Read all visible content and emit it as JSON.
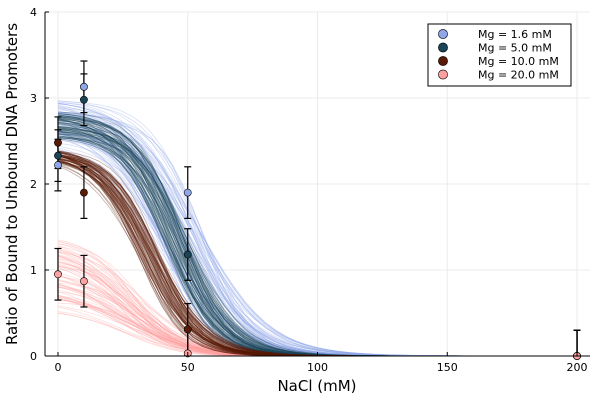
{
  "chart_data": {
    "type": "scatter",
    "xlabel": "NaCl (mM)",
    "ylabel": "Ratio of Bound to Unbound DNA Promoters",
    "xlim": [
      -5,
      205
    ],
    "ylim": [
      0,
      4
    ],
    "xticks": [
      0,
      50,
      100,
      150,
      200
    ],
    "yticks": [
      0,
      1,
      2,
      3,
      4
    ],
    "grid": true,
    "legend_position": "top-right",
    "series": [
      {
        "name": "Mg = 1.6 mM",
        "color": "#8fa6e8",
        "points": [
          {
            "x": 0,
            "y": 2.22,
            "err": 0.3
          },
          {
            "x": 10,
            "y": 3.13,
            "err": 0.3
          },
          {
            "x": 50,
            "y": 1.9,
            "err": 0.3
          },
          {
            "x": 200,
            "y": 0.0,
            "err": 0.3
          }
        ],
        "fit_band": {
          "top_max": 3.0,
          "top_min": 2.5,
          "mid_max": 58,
          "mid_min": 38,
          "width_max": 15,
          "width_min": 8
        }
      },
      {
        "name": "Mg = 5.0 mM",
        "color": "#1a4559",
        "points": [
          {
            "x": 0,
            "y": 2.33,
            "err": 0.3
          },
          {
            "x": 10,
            "y": 2.98,
            "err": 0.3
          },
          {
            "x": 50,
            "y": 1.18,
            "err": 0.3
          },
          {
            "x": 200,
            "y": 0.0,
            "err": 0.3
          }
        ],
        "fit_band": {
          "top_max": 2.85,
          "top_min": 2.55,
          "mid_max": 50,
          "mid_min": 40,
          "width_max": 11,
          "width_min": 8
        }
      },
      {
        "name": "Mg = 10.0 mM",
        "color": "#5a1a05",
        "points": [
          {
            "x": 0,
            "y": 2.48,
            "err": 0.3
          },
          {
            "x": 10,
            "y": 1.9,
            "err": 0.3
          },
          {
            "x": 50,
            "y": 0.31,
            "err": 0.3
          },
          {
            "x": 200,
            "y": 0.0,
            "err": 0.3
          }
        ],
        "fit_band": {
          "top_max": 2.45,
          "top_min": 2.3,
          "mid_max": 40,
          "mid_min": 31,
          "width_max": 11,
          "width_min": 8
        }
      },
      {
        "name": "Mg = 20.0 mM",
        "color": "#ffa0a0",
        "points": [
          {
            "x": 0,
            "y": 0.95,
            "err": 0.3
          },
          {
            "x": 10,
            "y": 0.87,
            "err": 0.3
          },
          {
            "x": 50,
            "y": 0.03,
            "err": 0.3
          },
          {
            "x": 200,
            "y": 0.0,
            "err": 0.3
          }
        ],
        "fit_band": {
          "top_max": 1.45,
          "top_min": 0.55,
          "mid_max": 34,
          "mid_min": 22,
          "width_max": 14,
          "width_min": 8
        }
      }
    ]
  }
}
